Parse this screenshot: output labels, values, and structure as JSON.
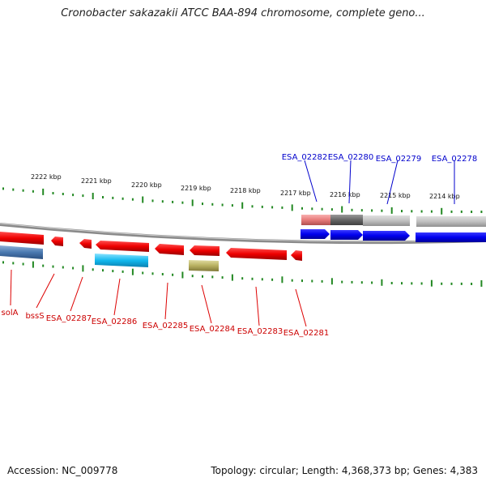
{
  "title": "Cronobacter sakazakii ATCC BAA-894 chromosome, complete geno...",
  "footer": {
    "accession_label": "Accession: NC_009778",
    "stats_label": "Topology: circular; Length: 4,368,373 bp; Genes: 4,383"
  },
  "colors": {
    "gene_forward": "#0000ee",
    "gene_reverse": "#ee0000",
    "tick": "#228822",
    "backbone": "#888888"
  },
  "scale_ticks": [
    "2222 kbp",
    "2221 kbp",
    "2220 kbp",
    "2219 kbp",
    "2218 kbp",
    "2217 kbp",
    "2216 kbp",
    "2215 kbp",
    "2214 kbp"
  ],
  "genes_top": [
    {
      "label": "ESA_02282",
      "strand": "+"
    },
    {
      "label": "ESA_02280",
      "strand": "+"
    },
    {
      "label": "ESA_02279",
      "strand": "+"
    },
    {
      "label": "ESA_02278",
      "strand": "+"
    }
  ],
  "genes_bottom": [
    {
      "label": "solA",
      "strand": "-"
    },
    {
      "label": "bssS",
      "strand": "-"
    },
    {
      "label": "ESA_02287",
      "strand": "-"
    },
    {
      "label": "ESA_02286",
      "strand": "-"
    },
    {
      "label": "ESA_02285",
      "strand": "-"
    },
    {
      "label": "ESA_02284",
      "strand": "-"
    },
    {
      "label": "ESA_02283",
      "strand": "-"
    },
    {
      "label": "ESA_02281",
      "strand": "-"
    }
  ]
}
